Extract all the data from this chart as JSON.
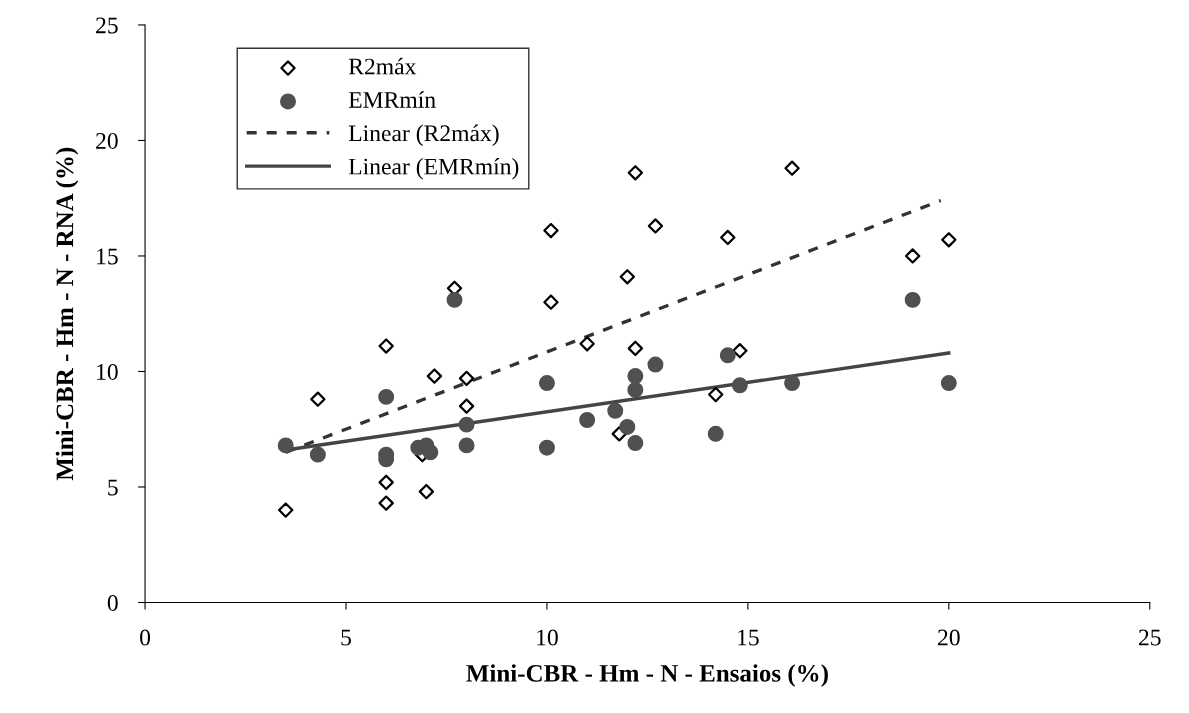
{
  "chart_data": {
    "type": "scatter",
    "xlabel": "Mini-CBR - Hm - N - Ensaios (%)",
    "ylabel": "Mini-CBR - Hm - N - RNA (%)",
    "xlim": [
      0,
      25
    ],
    "ylim": [
      0,
      25
    ],
    "xticks": [
      0,
      5,
      10,
      15,
      20,
      25
    ],
    "yticks": [
      0,
      5,
      10,
      15,
      20,
      25
    ],
    "grid": false,
    "legend": "top left",
    "series": [
      {
        "name": "R2máx",
        "marker": "diamond",
        "color": "#000000",
        "x": [
          3.5,
          4.3,
          6.0,
          6.0,
          6.0,
          6.9,
          7.0,
          7.2,
          7.7,
          8.0,
          8.0,
          10.1,
          10.1,
          11.0,
          11.8,
          12.0,
          12.2,
          12.2,
          12.7,
          14.2,
          14.5,
          14.8,
          16.1,
          19.1,
          20.0
        ],
        "values": [
          4.0,
          8.8,
          11.1,
          5.2,
          4.3,
          6.4,
          4.8,
          9.8,
          13.6,
          9.7,
          8.5,
          16.1,
          13.0,
          11.2,
          7.3,
          14.1,
          18.6,
          11.0,
          16.3,
          9.0,
          15.8,
          10.9,
          18.8,
          15.0,
          15.7
        ]
      },
      {
        "name": "EMRmín",
        "marker": "circle",
        "color": "#505050",
        "x": [
          3.5,
          4.3,
          6.0,
          6.0,
          6.0,
          6.8,
          7.0,
          7.1,
          7.7,
          8.0,
          8.0,
          10.0,
          10.0,
          11.0,
          11.7,
          12.0,
          12.2,
          12.2,
          12.2,
          12.7,
          14.2,
          14.5,
          14.8,
          16.1,
          19.1,
          20.0
        ],
        "values": [
          6.8,
          6.4,
          8.9,
          6.4,
          6.2,
          6.7,
          6.8,
          6.5,
          13.1,
          7.7,
          6.8,
          9.5,
          6.7,
          7.9,
          8.3,
          7.6,
          9.8,
          9.2,
          6.9,
          10.3,
          7.3,
          10.7,
          9.4,
          9.5,
          13.1,
          9.5
        ]
      },
      {
        "name": "Linear (R2máx)",
        "type": "line",
        "line_style": "dashed",
        "marker": "none",
        "color": "#333333",
        "x": [
          3.5,
          19.8
        ],
        "values": [
          6.5,
          17.4
        ]
      },
      {
        "name": "Linear (EMRmín)",
        "type": "line",
        "line_style": "solid",
        "marker": "none",
        "color": "#444444",
        "x": [
          3.5,
          20.0
        ],
        "values": [
          6.6,
          10.8
        ]
      }
    ]
  }
}
